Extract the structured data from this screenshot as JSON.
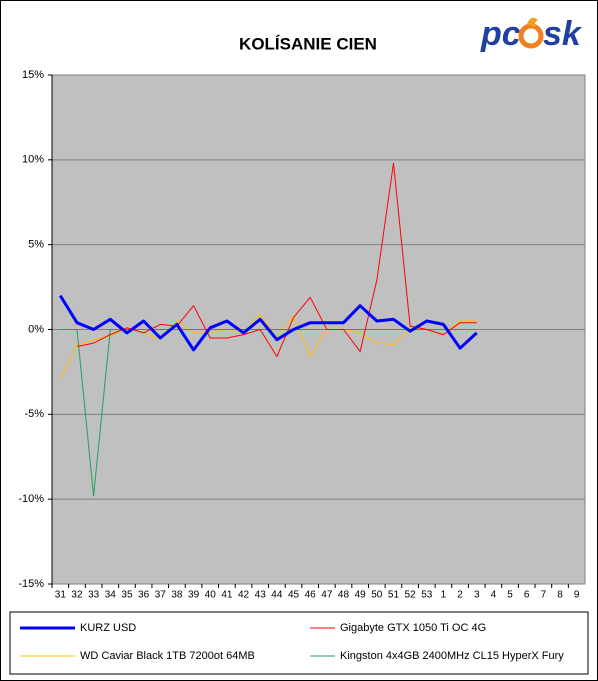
{
  "logo": {
    "left": "pc",
    "right": "sk"
  },
  "chart_data": {
    "type": "line",
    "title": "KOLÍSANIE CIEN",
    "categories": [
      "31",
      "32",
      "33",
      "34",
      "35",
      "36",
      "37",
      "38",
      "39",
      "40",
      "41",
      "42",
      "43",
      "44",
      "45",
      "46",
      "47",
      "48",
      "49",
      "50",
      "51",
      "52",
      "53",
      "1",
      "2",
      "3",
      "4",
      "5",
      "6",
      "7",
      "8",
      "9"
    ],
    "ylim": [
      -15,
      15
    ],
    "yticks": [
      {
        "value": -15,
        "label": "-15%"
      },
      {
        "value": -10,
        "label": "-10%"
      },
      {
        "value": -5,
        "label": "-5%"
      },
      {
        "value": 0,
        "label": "0%"
      },
      {
        "value": 5,
        "label": "5%"
      },
      {
        "value": 10,
        "label": "10%"
      },
      {
        "value": 15,
        "label": "15%"
      }
    ],
    "grid": true,
    "legend": "bottom",
    "series": [
      {
        "name": "KURZ USD",
        "color": "#0000ff",
        "width": 3,
        "values": [
          2.0,
          0.4,
          0,
          0.6,
          -0.2,
          0.5,
          -0.5,
          0.3,
          -1.2,
          0.1,
          0.5,
          -0.2,
          0.6,
          -0.6,
          0,
          0.4,
          0.4,
          0.4,
          1.4,
          0.5,
          0.6,
          -0.1,
          0.5,
          0.3,
          -1.1,
          -0.2,
          null,
          null,
          null,
          null,
          null,
          null
        ]
      },
      {
        "name": "Gigabyte GTX 1050 Ti OC 4G",
        "color": "#ff0000",
        "width": 1,
        "values": [
          null,
          -1.0,
          -0.8,
          -0.3,
          0.1,
          -0.2,
          0.3,
          0.2,
          1.4,
          -0.5,
          -0.5,
          -0.3,
          0,
          -1.6,
          0.7,
          1.9,
          0,
          0,
          -1.3,
          2.9,
          9.8,
          0.2,
          0,
          -0.3,
          0.4,
          0.4,
          null,
          null,
          null,
          null,
          null,
          null
        ]
      },
      {
        "name": "WD Caviar Black 1TB 7200ot 64MB",
        "color": "#ffc000",
        "width": 1,
        "values": [
          -2.9,
          -0.9,
          -0.6,
          -0.4,
          0.1,
          -0.2,
          -0.6,
          0.5,
          -0.2,
          -0.2,
          0,
          -0.2,
          0.9,
          -0.5,
          0.8,
          -1.6,
          0,
          0,
          -0.2,
          -0.8,
          -0.9,
          0.1,
          0,
          -0.3,
          0.5,
          0.5,
          null,
          null,
          null,
          null,
          null,
          null
        ]
      },
      {
        "name": "Kingston 4x4GB 2400MHz CL15 HyperX Fury",
        "color": "#22a060",
        "width": 1,
        "values": [
          0,
          0,
          -9.8,
          0,
          0,
          0,
          0,
          0,
          0,
          0,
          0,
          0,
          0,
          0,
          0,
          0,
          0,
          0,
          0,
          0,
          0,
          0,
          0,
          0,
          0,
          0,
          null,
          null,
          null,
          null,
          null,
          null
        ]
      }
    ]
  }
}
